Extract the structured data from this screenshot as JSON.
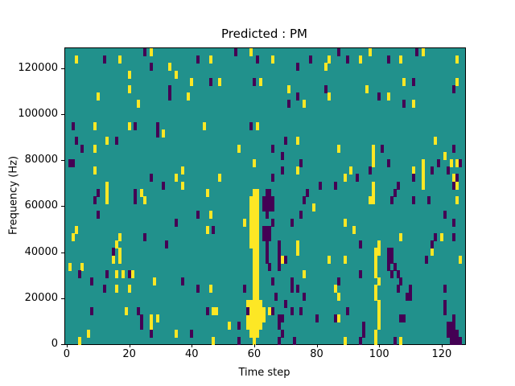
{
  "chart_data": {
    "type": "heatmap",
    "title": "Predicted : PM",
    "xlabel": "Time step",
    "ylabel": "Frequency (Hz)",
    "x_ticks": [
      0,
      20,
      40,
      60,
      80,
      100,
      120
    ],
    "y_ticks": [
      0,
      20000,
      40000,
      60000,
      80000,
      100000,
      120000
    ],
    "x_range": [
      0,
      128
    ],
    "y_range_hz": [
      0,
      128700
    ],
    "grid": {
      "cols": 128,
      "rows": 40,
      "rows_ordered": "top-to-bottom"
    },
    "legend_position": "none",
    "grid_lines": "off",
    "colormap": {
      "name": "viridis",
      "background_mid": "#21918c",
      "low": "#440154",
      "high": "#fde725"
    },
    "cells": {
      "high": [
        [
          27,
          0
        ],
        [
          59,
          0
        ],
        [
          97,
          0
        ],
        [
          114,
          0
        ],
        [
          3,
          1
        ],
        [
          17,
          1
        ],
        [
          46,
          1
        ],
        [
          66,
          1
        ],
        [
          84,
          1
        ],
        [
          94,
          1
        ],
        [
          107,
          1
        ],
        [
          125,
          1
        ],
        [
          33,
          2
        ],
        [
          83,
          2
        ],
        [
          20,
          3
        ],
        [
          35,
          3
        ],
        [
          40,
          4
        ],
        [
          49,
          4
        ],
        [
          62,
          4
        ],
        [
          108,
          4
        ],
        [
          125,
          4
        ],
        [
          20,
          5
        ],
        [
          71,
          5
        ],
        [
          96,
          5
        ],
        [
          10,
          6
        ],
        [
          39,
          6
        ],
        [
          84,
          6
        ],
        [
          103,
          6
        ],
        [
          23,
          7
        ],
        [
          76,
          7
        ],
        [
          111,
          7
        ],
        [
          9,
          10
        ],
        [
          20,
          10
        ],
        [
          44,
          10
        ],
        [
          61,
          10
        ],
        [
          31,
          11
        ],
        [
          13,
          12
        ],
        [
          74,
          12
        ],
        [
          118,
          12
        ],
        [
          9,
          13
        ],
        [
          55,
          13
        ],
        [
          87,
          13
        ],
        [
          98,
          13
        ],
        [
          98,
          14
        ],
        [
          121,
          14
        ],
        [
          60,
          15
        ],
        [
          98,
          15
        ],
        [
          114,
          15
        ],
        [
          123,
          15
        ],
        [
          125,
          15
        ],
        [
          9,
          16
        ],
        [
          37,
          16
        ],
        [
          74,
          16
        ],
        [
          91,
          16
        ],
        [
          111,
          16
        ],
        [
          114,
          16
        ],
        [
          35,
          17
        ],
        [
          49,
          17
        ],
        [
          89,
          17
        ],
        [
          114,
          17
        ],
        [
          124,
          17
        ],
        [
          13,
          18
        ],
        [
          37,
          18
        ],
        [
          98,
          18
        ],
        [
          114,
          18
        ],
        [
          125,
          18
        ],
        [
          13,
          19
        ],
        [
          24,
          19
        ],
        [
          45,
          19
        ],
        [
          60,
          19
        ],
        [
          61,
          19
        ],
        [
          98,
          19
        ],
        [
          13,
          20
        ],
        [
          25,
          20
        ],
        [
          59,
          20
        ],
        [
          60,
          20
        ],
        [
          61,
          20
        ],
        [
          97,
          20
        ],
        [
          98,
          20
        ],
        [
          125,
          20
        ],
        [
          59,
          21
        ],
        [
          60,
          21
        ],
        [
          61,
          21
        ],
        [
          79,
          21
        ],
        [
          46,
          22
        ],
        [
          59,
          22
        ],
        [
          60,
          22
        ],
        [
          61,
          22
        ],
        [
          57,
          23
        ],
        [
          59,
          23
        ],
        [
          60,
          23
        ],
        [
          61,
          23
        ],
        [
          89,
          23
        ],
        [
          3,
          24
        ],
        [
          45,
          24
        ],
        [
          59,
          24
        ],
        [
          60,
          24
        ],
        [
          61,
          24
        ],
        [
          92,
          24
        ],
        [
          2,
          25
        ],
        [
          17,
          25
        ],
        [
          59,
          25
        ],
        [
          60,
          25
        ],
        [
          61,
          25
        ],
        [
          107,
          25
        ],
        [
          120,
          25
        ],
        [
          16,
          26
        ],
        [
          59,
          26
        ],
        [
          60,
          26
        ],
        [
          61,
          26
        ],
        [
          74,
          26
        ],
        [
          100,
          26
        ],
        [
          17,
          27
        ],
        [
          60,
          27
        ],
        [
          61,
          27
        ],
        [
          74,
          27
        ],
        [
          99,
          27
        ],
        [
          100,
          27
        ],
        [
          117,
          27
        ],
        [
          15,
          28
        ],
        [
          17,
          28
        ],
        [
          60,
          28
        ],
        [
          61,
          28
        ],
        [
          69,
          28
        ],
        [
          84,
          28
        ],
        [
          89,
          28
        ],
        [
          99,
          28
        ],
        [
          126,
          28
        ],
        [
          1,
          29
        ],
        [
          5,
          29
        ],
        [
          60,
          29
        ],
        [
          61,
          29
        ],
        [
          99,
          29
        ],
        [
          16,
          30
        ],
        [
          18,
          30
        ],
        [
          21,
          30
        ],
        [
          60,
          30
        ],
        [
          61,
          30
        ],
        [
          76,
          30
        ],
        [
          99,
          30
        ],
        [
          28,
          31
        ],
        [
          60,
          31
        ],
        [
          61,
          31
        ],
        [
          100,
          31
        ],
        [
          16,
          32
        ],
        [
          20,
          32
        ],
        [
          46,
          32
        ],
        [
          60,
          32
        ],
        [
          61,
          32
        ],
        [
          86,
          32
        ],
        [
          99,
          32
        ],
        [
          60,
          33
        ],
        [
          61,
          33
        ],
        [
          87,
          33
        ],
        [
          99,
          33
        ],
        [
          58,
          34
        ],
        [
          59,
          34
        ],
        [
          60,
          34
        ],
        [
          61,
          34
        ],
        [
          62,
          34
        ],
        [
          100,
          34
        ],
        [
          19,
          35
        ],
        [
          47,
          35
        ],
        [
          48,
          35
        ],
        [
          58,
          35
        ],
        [
          59,
          35
        ],
        [
          60,
          35
        ],
        [
          61,
          35
        ],
        [
          62,
          35
        ],
        [
          63,
          35
        ],
        [
          65,
          35
        ],
        [
          100,
          35
        ],
        [
          27,
          36
        ],
        [
          29,
          36
        ],
        [
          58,
          36
        ],
        [
          59,
          36
        ],
        [
          60,
          36
        ],
        [
          61,
          36
        ],
        [
          62,
          36
        ],
        [
          63,
          36
        ],
        [
          87,
          36
        ],
        [
          100,
          36
        ],
        [
          27,
          37
        ],
        [
          52,
          37
        ],
        [
          58,
          37
        ],
        [
          59,
          37
        ],
        [
          60,
          37
        ],
        [
          61,
          37
        ],
        [
          62,
          37
        ],
        [
          100,
          37
        ],
        [
          7,
          38
        ],
        [
          35,
          38
        ],
        [
          59,
          38
        ],
        [
          60,
          38
        ],
        [
          61,
          38
        ],
        [
          99,
          38
        ],
        [
          4,
          39
        ],
        [
          47,
          39
        ],
        [
          60,
          39
        ],
        [
          89,
          39
        ],
        [
          99,
          39
        ],
        [
          107,
          39
        ]
      ],
      "low": [
        [
          25,
          0
        ],
        [
          54,
          0
        ],
        [
          87,
          0
        ],
        [
          112,
          0
        ],
        [
          12,
          1
        ],
        [
          42,
          1
        ],
        [
          61,
          1
        ],
        [
          78,
          1
        ],
        [
          90,
          1
        ],
        [
          103,
          1
        ],
        [
          27,
          2
        ],
        [
          74,
          2
        ],
        [
          46,
          4
        ],
        [
          60,
          4
        ],
        [
          111,
          4
        ],
        [
          33,
          5
        ],
        [
          83,
          5
        ],
        [
          124,
          5
        ],
        [
          33,
          6
        ],
        [
          74,
          6
        ],
        [
          100,
          6
        ],
        [
          71,
          7
        ],
        [
          108,
          7
        ],
        [
          2,
          10
        ],
        [
          22,
          10
        ],
        [
          29,
          10
        ],
        [
          59,
          10
        ],
        [
          29,
          11
        ],
        [
          3,
          12
        ],
        [
          16,
          12
        ],
        [
          70,
          12
        ],
        [
          5,
          13
        ],
        [
          66,
          13
        ],
        [
          101,
          13
        ],
        [
          124,
          13
        ],
        [
          69,
          14
        ],
        [
          1,
          15
        ],
        [
          2,
          15
        ],
        [
          75,
          15
        ],
        [
          103,
          15
        ],
        [
          119,
          15
        ],
        [
          126,
          15
        ],
        [
          69,
          16
        ],
        [
          97,
          16
        ],
        [
          117,
          16
        ],
        [
          122,
          16
        ],
        [
          27,
          17
        ],
        [
          66,
          17
        ],
        [
          93,
          17
        ],
        [
          111,
          17
        ],
        [
          125,
          17
        ],
        [
          31,
          18
        ],
        [
          81,
          18
        ],
        [
          86,
          18
        ],
        [
          106,
          18
        ],
        [
          124,
          18
        ],
        [
          10,
          19
        ],
        [
          22,
          19
        ],
        [
          64,
          19
        ],
        [
          65,
          19
        ],
        [
          77,
          19
        ],
        [
          105,
          19
        ],
        [
          9,
          20
        ],
        [
          22,
          20
        ],
        [
          63,
          20
        ],
        [
          64,
          20
        ],
        [
          65,
          20
        ],
        [
          66,
          20
        ],
        [
          76,
          20
        ],
        [
          104,
          20
        ],
        [
          111,
          20
        ],
        [
          116,
          20
        ],
        [
          63,
          21
        ],
        [
          64,
          21
        ],
        [
          65,
          21
        ],
        [
          66,
          21
        ],
        [
          10,
          22
        ],
        [
          42,
          22
        ],
        [
          64,
          22
        ],
        [
          75,
          22
        ],
        [
          121,
          22
        ],
        [
          35,
          23
        ],
        [
          66,
          23
        ],
        [
          72,
          23
        ],
        [
          124,
          23
        ],
        [
          47,
          24
        ],
        [
          63,
          24
        ],
        [
          64,
          24
        ],
        [
          65,
          24
        ],
        [
          25,
          25
        ],
        [
          63,
          25
        ],
        [
          64,
          25
        ],
        [
          65,
          25
        ],
        [
          118,
          25
        ],
        [
          124,
          25
        ],
        [
          32,
          26
        ],
        [
          64,
          26
        ],
        [
          68,
          26
        ],
        [
          94,
          26
        ],
        [
          117,
          26
        ],
        [
          15,
          27
        ],
        [
          64,
          27
        ],
        [
          68,
          27
        ],
        [
          103,
          27
        ],
        [
          104,
          27
        ],
        [
          64,
          28
        ],
        [
          68,
          28
        ],
        [
          70,
          28
        ],
        [
          103,
          28
        ],
        [
          104,
          28
        ],
        [
          115,
          28
        ],
        [
          65,
          29
        ],
        [
          68,
          29
        ],
        [
          103,
          29
        ],
        [
          105,
          29
        ],
        [
          4,
          30
        ],
        [
          13,
          30
        ],
        [
          20,
          30
        ],
        [
          94,
          30
        ],
        [
          104,
          30
        ],
        [
          106,
          30
        ],
        [
          8,
          31
        ],
        [
          37,
          31
        ],
        [
          66,
          31
        ],
        [
          72,
          31
        ],
        [
          87,
          31
        ],
        [
          107,
          31
        ],
        [
          12,
          32
        ],
        [
          42,
          32
        ],
        [
          57,
          32
        ],
        [
          72,
          32
        ],
        [
          74,
          32
        ],
        [
          106,
          32
        ],
        [
          110,
          32
        ],
        [
          121,
          32
        ],
        [
          67,
          33
        ],
        [
          76,
          33
        ],
        [
          109,
          33
        ],
        [
          110,
          33
        ],
        [
          70,
          34
        ],
        [
          121,
          34
        ],
        [
          8,
          35
        ],
        [
          23,
          35
        ],
        [
          45,
          35
        ],
        [
          58,
          35
        ],
        [
          66,
          35
        ],
        [
          72,
          35
        ],
        [
          75,
          35
        ],
        [
          90,
          35
        ],
        [
          121,
          35
        ],
        [
          24,
          36
        ],
        [
          68,
          36
        ],
        [
          69,
          36
        ],
        [
          80,
          36
        ],
        [
          86,
          36
        ],
        [
          107,
          36
        ],
        [
          108,
          36
        ],
        [
          124,
          36
        ],
        [
          24,
          37
        ],
        [
          55,
          37
        ],
        [
          68,
          37
        ],
        [
          95,
          37
        ],
        [
          122,
          37
        ],
        [
          123,
          37
        ],
        [
          124,
          37
        ],
        [
          27,
          38
        ],
        [
          40,
          38
        ],
        [
          69,
          38
        ],
        [
          95,
          38
        ],
        [
          122,
          38
        ],
        [
          123,
          38
        ],
        [
          124,
          38
        ],
        [
          125,
          38
        ],
        [
          55,
          39
        ],
        [
          68,
          39
        ],
        [
          73,
          39
        ],
        [
          94,
          39
        ],
        [
          105,
          39
        ],
        [
          123,
          39
        ],
        [
          124,
          39
        ],
        [
          125,
          39
        ],
        [
          126,
          39
        ]
      ]
    }
  }
}
